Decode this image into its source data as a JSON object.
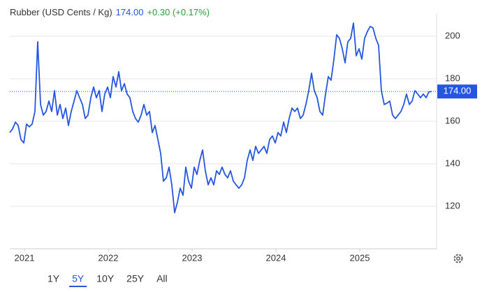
{
  "chart_data": {
    "type": "line",
    "title": "Rubber (USD Cents / Kg)",
    "last_value": {
      "value": 174,
      "label": "174.00"
    },
    "change": "+0.30 (+0.17%)",
    "ranges": [
      "1Y",
      "5Y",
      "10Y",
      "25Y",
      "All"
    ],
    "selected_range": "5Y",
    "xlim": [
      2020.825,
      2025.917
    ],
    "xticks": [
      2021,
      2022,
      2023,
      2024,
      2025
    ],
    "ylim": [
      100,
      210
    ],
    "yticks": [
      120,
      140,
      160,
      180,
      200
    ],
    "grid": true,
    "series": [
      {
        "name": "Rubber",
        "color": "#2456e0",
        "x": [
          2020.825,
          2020.858,
          2020.892,
          2020.925,
          2020.958,
          2020.992,
          2021.025,
          2021.058,
          2021.092,
          2021.125,
          2021.158,
          2021.192,
          2021.225,
          2021.258,
          2021.292,
          2021.325,
          2021.358,
          2021.392,
          2021.425,
          2021.458,
          2021.492,
          2021.525,
          2021.558,
          2021.592,
          2021.625,
          2021.658,
          2021.692,
          2021.725,
          2021.758,
          2021.792,
          2021.825,
          2021.858,
          2021.892,
          2021.925,
          2021.958,
          2021.992,
          2022.025,
          2022.058,
          2022.092,
          2022.125,
          2022.158,
          2022.192,
          2022.225,
          2022.258,
          2022.292,
          2022.325,
          2022.358,
          2022.392,
          2022.425,
          2022.458,
          2022.492,
          2022.525,
          2022.558,
          2022.592,
          2022.625,
          2022.658,
          2022.692,
          2022.725,
          2022.758,
          2022.792,
          2022.825,
          2022.858,
          2022.892,
          2022.925,
          2022.958,
          2022.992,
          2023.025,
          2023.058,
          2023.092,
          2023.125,
          2023.158,
          2023.192,
          2023.225,
          2023.258,
          2023.292,
          2023.325,
          2023.358,
          2023.392,
          2023.425,
          2023.458,
          2023.492,
          2023.525,
          2023.558,
          2023.592,
          2023.625,
          2023.658,
          2023.692,
          2023.725,
          2023.758,
          2023.792,
          2023.825,
          2023.858,
          2023.892,
          2023.925,
          2023.958,
          2023.992,
          2024.025,
          2024.058,
          2024.092,
          2024.125,
          2024.158,
          2024.192,
          2024.225,
          2024.258,
          2024.292,
          2024.325,
          2024.358,
          2024.392,
          2024.425,
          2024.458,
          2024.492,
          2024.525,
          2024.558,
          2024.592,
          2024.625,
          2024.658,
          2024.692,
          2024.725,
          2024.758,
          2024.792,
          2024.825,
          2024.858,
          2024.892,
          2024.925,
          2024.958,
          2024.992,
          2025.025,
          2025.058,
          2025.092,
          2025.125,
          2025.158,
          2025.192,
          2025.225,
          2025.258,
          2025.292,
          2025.325,
          2025.358,
          2025.392,
          2025.425,
          2025.458,
          2025.492,
          2025.525,
          2025.558,
          2025.592,
          2025.625,
          2025.658,
          2025.692,
          2025.725,
          2025.758,
          2025.792,
          2025.825,
          2025.858
        ],
        "values": [
          154.7,
          156.4,
          159.6,
          158.0,
          151.4,
          149.8,
          158.7,
          157.4,
          158.7,
          164.6,
          197.4,
          167.9,
          162.9,
          164.6,
          169.5,
          164.6,
          174.4,
          162.9,
          167.9,
          161.3,
          166.2,
          158.0,
          164.6,
          169.5,
          174.4,
          171.1,
          167.9,
          161.3,
          162.9,
          171.1,
          176.1,
          171.1,
          174.4,
          164.6,
          172.8,
          176.1,
          171.1,
          181.0,
          176.1,
          183.3,
          174.4,
          177.7,
          172.8,
          171.1,
          164.6,
          161.3,
          159.6,
          162.9,
          167.9,
          162.9,
          164.6,
          154.7,
          158.0,
          151.4,
          144.9,
          131.8,
          133.4,
          138.4,
          130.1,
          117.0,
          121.9,
          128.5,
          125.2,
          138.4,
          131.8,
          128.5,
          138.4,
          135.0,
          141.6,
          146.5,
          136.7,
          130.1,
          133.4,
          130.1,
          136.7,
          135.0,
          138.4,
          135.0,
          133.4,
          136.7,
          131.8,
          130.1,
          128.5,
          130.1,
          133.4,
          141.6,
          146.5,
          141.6,
          148.2,
          144.9,
          146.5,
          148.2,
          144.9,
          151.4,
          153.1,
          149.8,
          154.7,
          153.1,
          159.6,
          154.7,
          161.3,
          166.2,
          164.6,
          166.2,
          161.3,
          162.9,
          167.9,
          174.4,
          182.6,
          174.4,
          171.1,
          164.6,
          162.9,
          172.8,
          181.0,
          179.3,
          189.2,
          200.7,
          199.0,
          194.1,
          187.5,
          197.4,
          199.0,
          206.2,
          190.8,
          194.1,
          189.2,
          199.0,
          202.3,
          204.6,
          203.9,
          199.0,
          195.7,
          174.4,
          167.9,
          168.5,
          169.5,
          162.9,
          161.3,
          162.9,
          164.6,
          167.9,
          172.8,
          167.9,
          169.5,
          174.4,
          172.8,
          171.1,
          172.8,
          171.1,
          173.8,
          174.0
        ]
      }
    ]
  }
}
